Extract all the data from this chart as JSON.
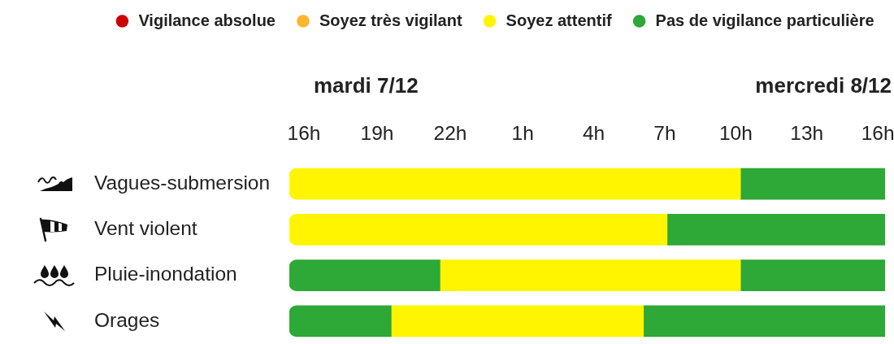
{
  "chart_data": [
    {
      "type": "bar",
      "orientation": "horizontal",
      "title": "mardi 7/12",
      "categories": [
        "Vagues-submersion",
        "Vent violent",
        "Pluie-inondation",
        "Orages"
      ],
      "series": [
        {
          "name": "Vigilance absolue",
          "color": "#cc0000",
          "values": [
            null,
            null,
            null,
            null
          ]
        },
        {
          "name": "Soyez très vigilant",
          "color": "#ffb52e",
          "values": [
            null,
            null,
            null,
            null
          ]
        },
        {
          "name": "Soyez attentif",
          "color": "#fff500",
          "base": [
            15.4,
            15.4,
            21.6,
            19.6
          ],
          "values": [
            8.6,
            8.6,
            2.4,
            4.4
          ]
        },
        {
          "name": "Pas de vigilance particulière",
          "color": "#2ea836",
          "base": [
            null,
            null,
            15.4,
            15.4
          ],
          "values": [
            null,
            null,
            6.2,
            4.2
          ]
        }
      ],
      "xlim": [
        15.4,
        24
      ],
      "xticks": [
        {
          "value": 16,
          "label": "16h"
        },
        {
          "value": 19,
          "label": "19h"
        },
        {
          "value": 22,
          "label": "22h"
        }
      ],
      "legend": "top"
    },
    {
      "type": "bar",
      "orientation": "horizontal",
      "title": "mercredi 8/12",
      "stacked": true,
      "series": [
        {
          "color": "#fff500",
          "values": [
            10.2,
            7.1,
            10.2,
            6.1
          ]
        },
        {
          "color": "#2ea836",
          "values": [
            6.1,
            9.2,
            6.1,
            10.2
          ]
        }
      ],
      "xlim": [
        0,
        16.3
      ],
      "xticks": [
        {
          "value": 1,
          "label": "1h"
        },
        {
          "value": 4,
          "label": "4h"
        },
        {
          "value": 7,
          "label": "7h"
        },
        {
          "value": 10,
          "label": "10h"
        },
        {
          "value": 13,
          "label": "13h"
        },
        {
          "value": 16,
          "label": "16h"
        }
      ],
      "tick_labels": "x"
    }
  ]
}
